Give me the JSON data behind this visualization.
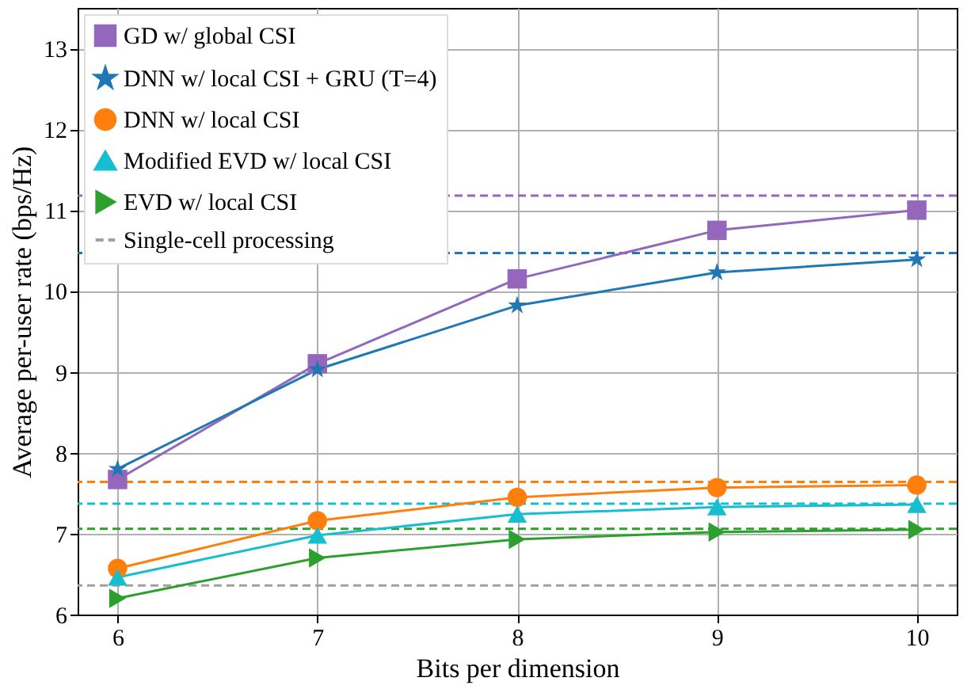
{
  "chart_data": {
    "type": "line",
    "xlabel": "Bits per dimension",
    "ylabel": "Average per-user rate (bps/Hz)",
    "x": [
      6,
      7,
      8,
      9,
      10
    ],
    "series": [
      {
        "name": "GD w/ global CSI",
        "color": "#9467bd",
        "marker": "square",
        "values": [
          7.67,
          9.1,
          10.15,
          10.75,
          11.0
        ]
      },
      {
        "name": "DNN w/ local CSI + GRU (T=4)",
        "color": "#1f77b4",
        "marker": "star",
        "values": [
          7.8,
          9.03,
          9.82,
          10.23,
          10.39
        ]
      },
      {
        "name": "DNN w/ local CSI",
        "color": "#ff7f0e",
        "marker": "circle",
        "values": [
          6.57,
          7.16,
          7.45,
          7.57,
          7.6
        ]
      },
      {
        "name": "Modified EVD w/ local CSI",
        "color": "#17becf",
        "marker": "triangle",
        "values": [
          6.46,
          6.98,
          7.24,
          7.33,
          7.36
        ]
      },
      {
        "name": "EVD w/ local CSI",
        "color": "#2ca02c",
        "marker": "triangle-right",
        "values": [
          6.2,
          6.7,
          6.93,
          7.02,
          7.05
        ]
      }
    ],
    "ref_lines": [
      {
        "axis": "y",
        "value": 11.18,
        "color": "#9467bd",
        "line_style": "dashed"
      },
      {
        "axis": "y",
        "value": 10.47,
        "color": "#1f77b4",
        "line_style": "dashed"
      },
      {
        "axis": "y",
        "value": 7.64,
        "color": "#ff7f0e",
        "line_style": "dashed"
      },
      {
        "axis": "y",
        "value": 7.37,
        "color": "#17becf",
        "line_style": "dashed"
      },
      {
        "axis": "y",
        "value": 7.06,
        "color": "#2ca02c",
        "line_style": "dashed"
      },
      {
        "axis": "y",
        "value": 6.36,
        "color": "#a0a0a0",
        "line_style": "dashed",
        "label": "Single-cell processing"
      }
    ],
    "xlim": [
      5.8,
      10.2
    ],
    "xticks": [
      6,
      7,
      8,
      9,
      10
    ],
    "ylim": [
      6,
      13.5
    ],
    "yticks": [
      6,
      7,
      8,
      9,
      10,
      11,
      12,
      13
    ],
    "grid": true,
    "legend": "top left",
    "line_style": "solid"
  }
}
